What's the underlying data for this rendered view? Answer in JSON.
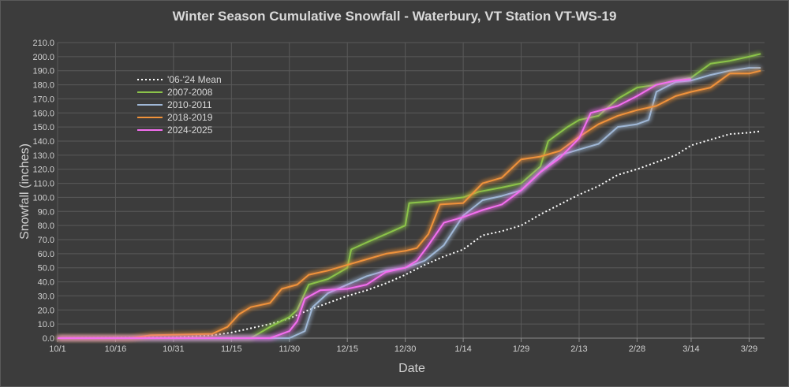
{
  "chart_data": {
    "type": "line",
    "title": "Winter Season Cumulative Snowfall - Waterbury, VT Station VT-WS-19",
    "xlabel": "Date",
    "ylabel": "Snowfall (inches)",
    "ylim": [
      0,
      210
    ],
    "y_ticks": [
      "0.0",
      "10.0",
      "20.0",
      "30.0",
      "40.0",
      "50.0",
      "60.0",
      "70.0",
      "80.0",
      "90.0",
      "100.0",
      "110.0",
      "120.0",
      "130.0",
      "140.0",
      "150.0",
      "160.0",
      "170.0",
      "180.0",
      "190.0",
      "200.0",
      "210.0"
    ],
    "x_ticks": [
      "10/1",
      "10/16",
      "10/31",
      "11/15",
      "11/30",
      "12/15",
      "12/30",
      "1/14",
      "1/29",
      "2/13",
      "2/28",
      "3/14",
      "3/29"
    ],
    "grid": true,
    "legend_position": "top-left",
    "series": [
      {
        "name": "'06-'24 Mean",
        "color": "#ffffff",
        "style": "dotted",
        "points": [
          [
            "10/1",
            0
          ],
          [
            "10/31",
            0.5
          ],
          [
            "11/10",
            2
          ],
          [
            "11/15",
            4
          ],
          [
            "11/20",
            7
          ],
          [
            "11/25",
            10
          ],
          [
            "11/30",
            14
          ],
          [
            "12/5",
            20
          ],
          [
            "12/10",
            25
          ],
          [
            "12/15",
            30
          ],
          [
            "12/20",
            34
          ],
          [
            "12/25",
            39
          ],
          [
            "12/30",
            45
          ],
          [
            "1/4",
            52
          ],
          [
            "1/9",
            58
          ],
          [
            "1/14",
            63
          ],
          [
            "1/19",
            73
          ],
          [
            "1/24",
            76
          ],
          [
            "1/29",
            80
          ],
          [
            "2/3",
            88
          ],
          [
            "2/8",
            95
          ],
          [
            "2/13",
            102
          ],
          [
            "2/18",
            108
          ],
          [
            "2/23",
            116
          ],
          [
            "2/28",
            120
          ],
          [
            "3/5",
            125
          ],
          [
            "3/10",
            130
          ],
          [
            "3/14",
            137
          ],
          [
            "3/19",
            141
          ],
          [
            "3/24",
            145
          ],
          [
            "3/29",
            146
          ],
          [
            "4/1",
            147
          ]
        ]
      },
      {
        "name": "2007-2008",
        "color": "#8bc34a",
        "style": "solid",
        "points": [
          [
            "10/1",
            0
          ],
          [
            "11/20",
            0
          ],
          [
            "11/25",
            8
          ],
          [
            "11/30",
            15
          ],
          [
            "12/2",
            20
          ],
          [
            "12/5",
            38
          ],
          [
            "12/10",
            42
          ],
          [
            "12/15",
            50
          ],
          [
            "12/16",
            63
          ],
          [
            "12/20",
            68
          ],
          [
            "12/25",
            74
          ],
          [
            "12/30",
            80
          ],
          [
            "12/31",
            96
          ],
          [
            "1/5",
            97
          ],
          [
            "1/14",
            100
          ],
          [
            "1/18",
            104
          ],
          [
            "1/24",
            107
          ],
          [
            "1/29",
            110
          ],
          [
            "2/3",
            122
          ],
          [
            "2/5",
            140
          ],
          [
            "2/10",
            150
          ],
          [
            "2/13",
            155
          ],
          [
            "2/18",
            158
          ],
          [
            "2/23",
            170
          ],
          [
            "2/28",
            178
          ],
          [
            "3/5",
            180
          ],
          [
            "3/10",
            183
          ],
          [
            "3/14",
            185
          ],
          [
            "3/19",
            195
          ],
          [
            "3/24",
            197
          ],
          [
            "3/29",
            200
          ],
          [
            "4/1",
            202
          ]
        ]
      },
      {
        "name": "2010-2011",
        "color": "#9fb7d6",
        "style": "solid",
        "points": [
          [
            "10/1",
            0
          ],
          [
            "11/30",
            0
          ],
          [
            "12/4",
            5
          ],
          [
            "12/6",
            22
          ],
          [
            "12/10",
            32
          ],
          [
            "12/15",
            38
          ],
          [
            "12/20",
            44
          ],
          [
            "12/25",
            48
          ],
          [
            "12/30",
            50
          ],
          [
            "1/4",
            55
          ],
          [
            "1/9",
            66
          ],
          [
            "1/14",
            87
          ],
          [
            "1/19",
            98
          ],
          [
            "1/24",
            101
          ],
          [
            "1/29",
            105
          ],
          [
            "2/3",
            118
          ],
          [
            "2/8",
            130
          ],
          [
            "2/13",
            134
          ],
          [
            "2/18",
            138
          ],
          [
            "2/23",
            150
          ],
          [
            "2/28",
            152
          ],
          [
            "3/3",
            155
          ],
          [
            "3/5",
            175
          ],
          [
            "3/10",
            182
          ],
          [
            "3/14",
            183
          ],
          [
            "3/19",
            187
          ],
          [
            "3/24",
            190
          ],
          [
            "3/29",
            192
          ],
          [
            "4/1",
            192
          ]
        ]
      },
      {
        "name": "2018-2019",
        "color": "#f0923a",
        "style": "solid",
        "points": [
          [
            "10/1",
            0
          ],
          [
            "10/20",
            0
          ],
          [
            "10/25",
            2
          ],
          [
            "11/10",
            3
          ],
          [
            "11/14",
            8
          ],
          [
            "11/17",
            17
          ],
          [
            "11/20",
            22
          ],
          [
            "11/25",
            25
          ],
          [
            "11/28",
            35
          ],
          [
            "12/2",
            38
          ],
          [
            "12/5",
            45
          ],
          [
            "12/10",
            48
          ],
          [
            "12/15",
            52
          ],
          [
            "12/20",
            56
          ],
          [
            "12/25",
            60
          ],
          [
            "12/30",
            62
          ],
          [
            "1/2",
            64
          ],
          [
            "1/5",
            74
          ],
          [
            "1/8",
            95
          ],
          [
            "1/14",
            96
          ],
          [
            "1/19",
            110
          ],
          [
            "1/24",
            114
          ],
          [
            "1/29",
            127
          ],
          [
            "2/3",
            129
          ],
          [
            "2/8",
            133
          ],
          [
            "2/13",
            143
          ],
          [
            "2/18",
            152
          ],
          [
            "2/23",
            158
          ],
          [
            "2/28",
            162
          ],
          [
            "3/5",
            165
          ],
          [
            "3/10",
            172
          ],
          [
            "3/14",
            175
          ],
          [
            "3/19",
            178
          ],
          [
            "3/24",
            188
          ],
          [
            "3/29",
            188
          ],
          [
            "4/1",
            190
          ]
        ]
      },
      {
        "name": "2024-2025",
        "color": "#f46ef0",
        "style": "solid",
        "points": [
          [
            "10/1",
            0
          ],
          [
            "11/25",
            0
          ],
          [
            "11/30",
            5
          ],
          [
            "12/2",
            12
          ],
          [
            "12/4",
            28
          ],
          [
            "12/8",
            34
          ],
          [
            "12/15",
            35
          ],
          [
            "12/20",
            38
          ],
          [
            "12/25",
            47
          ],
          [
            "12/30",
            50
          ],
          [
            "1/2",
            55
          ],
          [
            "1/5",
            66
          ],
          [
            "1/9",
            82
          ],
          [
            "1/14",
            86
          ],
          [
            "1/19",
            91
          ],
          [
            "1/24",
            95
          ],
          [
            "1/29",
            105
          ],
          [
            "2/3",
            118
          ],
          [
            "2/8",
            128
          ],
          [
            "2/13",
            142
          ],
          [
            "2/16",
            160
          ],
          [
            "2/23",
            165
          ],
          [
            "2/28",
            172
          ],
          [
            "3/5",
            180
          ],
          [
            "3/10",
            183
          ],
          [
            "3/14",
            184
          ]
        ]
      }
    ]
  }
}
